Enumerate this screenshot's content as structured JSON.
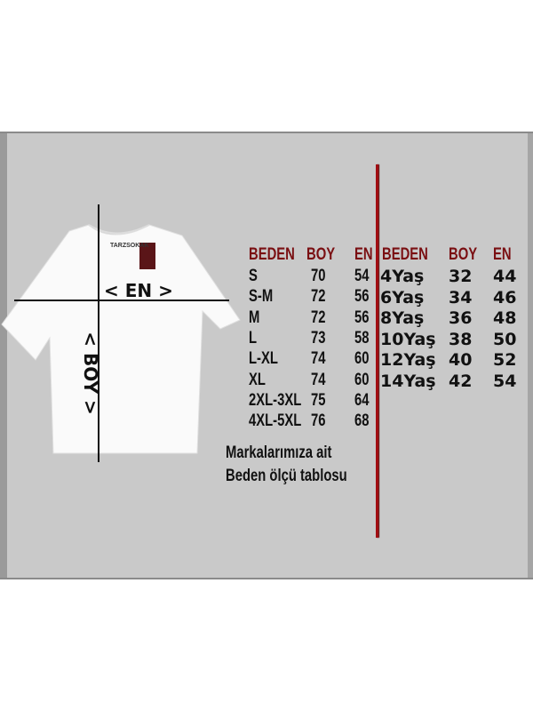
{
  "shirt": {
    "brand_label": "TARZSOKAK",
    "width_label": "< EN >",
    "length_label": "< BOY >"
  },
  "adult_table": {
    "headers": [
      "BEDEN",
      "BOY",
      "EN"
    ],
    "rows": [
      [
        "S",
        "70",
        "54"
      ],
      [
        "S-M",
        "72",
        "56"
      ],
      [
        "M",
        "72",
        "56"
      ],
      [
        "L",
        "73",
        "58"
      ],
      [
        "L-XL",
        "74",
        "60"
      ],
      [
        "XL",
        "74",
        "60"
      ],
      [
        "2XL-3XL",
        "75",
        "64"
      ],
      [
        "4XL-5XL",
        "76",
        "68"
      ]
    ]
  },
  "kids_table": {
    "headers": [
      "BEDEN",
      "BOY",
      "EN"
    ],
    "rows": [
      [
        "4Yaş",
        "32",
        "44"
      ],
      [
        "6Yaş",
        "34",
        "46"
      ],
      [
        "8Yaş",
        "36",
        "48"
      ],
      [
        "10Yaş",
        "38",
        "50"
      ],
      [
        "12Yaş",
        "40",
        "52"
      ],
      [
        "14Yaş",
        "42",
        "54"
      ]
    ]
  },
  "note": {
    "line1": "Markalarımıza ait",
    "line2": "Beden ölçü tablosu"
  },
  "colors": {
    "header": "#7a0f12",
    "divider": "#a10d12",
    "background": "#c9c9c9"
  }
}
